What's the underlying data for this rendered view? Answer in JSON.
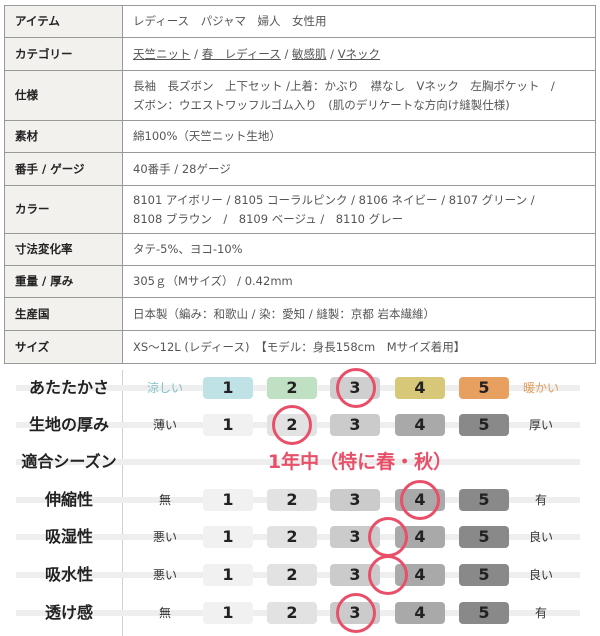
{
  "spec_table": [
    {
      "label": "アイテム",
      "value": "レディース　パジャマ　婦人　女性用"
    },
    {
      "label": "カテゴリー",
      "links": [
        "天竺ニット",
        "春　レディース",
        "敏感肌",
        "Vネック"
      ],
      "separator": " / "
    },
    {
      "label": "仕様",
      "lines": [
        "長袖　長ズボン　上下セット /上着：かぶり　襟なし　Vネック　左胸ポケット　/",
        "ズボン：ウエストワッフルゴム入り　(肌のデリケートな方向け縫製仕様)"
      ]
    },
    {
      "label": "素材",
      "value": "綿100%（天竺ニット生地）"
    },
    {
      "label": "番手 / ゲージ",
      "value": "40番手 / 28ゲージ"
    },
    {
      "label": "カラー",
      "lines": [
        "8101 アイボリー / 8105 コーラルピンク / 8106 ネイビー / 8107 グリーン /",
        "8108 ブラウン　/　8109 ベージュ /　8110 グレー"
      ]
    },
    {
      "label": "寸法変化率",
      "value": "タテ-5%、ヨコ-10%"
    },
    {
      "label": "重量 / 厚み",
      "value": "305ｇ（Mサイズ） / 0.42mm"
    },
    {
      "label": "生産国",
      "value": "日本製（編み：和歌山 / 染：愛知 / 縫製：京都 岩本繊維）"
    },
    {
      "label": "サイズ",
      "value": "XS～12L (レディース)　【モデル：身長158cm　Mサイズ着用】"
    }
  ],
  "ratings": [
    {
      "label": "あたたかさ",
      "left": "涼しい",
      "right": "暖かい",
      "selected": 3,
      "left_color": "#7fc3cc",
      "right_color": "#e0a060",
      "colors": [
        "#bfe2e6",
        "#bfe0c2",
        "#cfcfcf",
        "#d6c878",
        "#e8a060"
      ]
    },
    {
      "label": "生地の厚み",
      "left": "薄い",
      "right": "厚い",
      "selected": 2
    },
    {
      "label": "適合シーズン",
      "season": "1年中（特に春・秋）"
    },
    {
      "label": "伸縮性",
      "left": "無",
      "right": "有",
      "selected": 4
    },
    {
      "label": "吸湿性",
      "left": "悪い",
      "right": "良い",
      "selected": 3.5
    },
    {
      "label": "吸水性",
      "left": "悪い",
      "right": "良い",
      "selected": 3.5
    },
    {
      "label": "透け感",
      "left": "無",
      "right": "有",
      "selected": 3
    }
  ],
  "scale_labels": [
    "1",
    "2",
    "3",
    "4",
    "5"
  ],
  "default_colors": [
    "#f1f1f1",
    "#e2e2e2",
    "#cbcbcb",
    "#a9a9a9",
    "#898989"
  ],
  "accent": "#e8506a"
}
